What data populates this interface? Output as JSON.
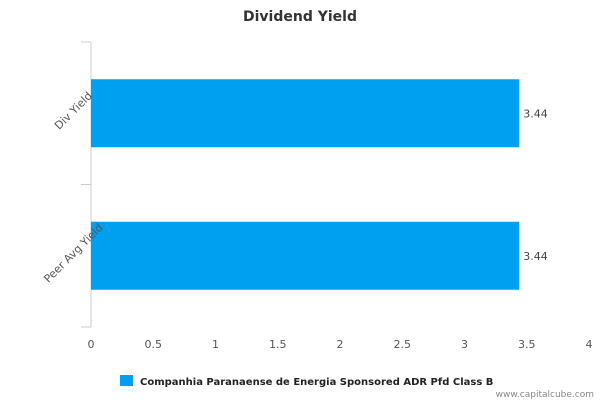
{
  "chart_data": {
    "type": "bar",
    "orientation": "horizontal",
    "title": "Dividend Yield",
    "categories": [
      "Div Yield",
      "Peer Avg Yield"
    ],
    "series": [
      {
        "name": "Companhia Paranaense de Energia Sponsored ADR Pfd Class B",
        "values": [
          3.44,
          3.44
        ],
        "color": "#00a0f0"
      }
    ],
    "xlim": [
      0,
      4
    ],
    "xticks": [
      0,
      0.5,
      1,
      1.5,
      2,
      2.5,
      3,
      3.5,
      4
    ],
    "xtick_labels": [
      "0",
      "0.5",
      "1",
      "1.5",
      "2",
      "2.5",
      "3",
      "3.5",
      "4"
    ],
    "data_labels": [
      "3.44",
      "3.44"
    ],
    "grid": false,
    "legend_position": "bottom"
  },
  "credit": "www.capitalcube.com"
}
